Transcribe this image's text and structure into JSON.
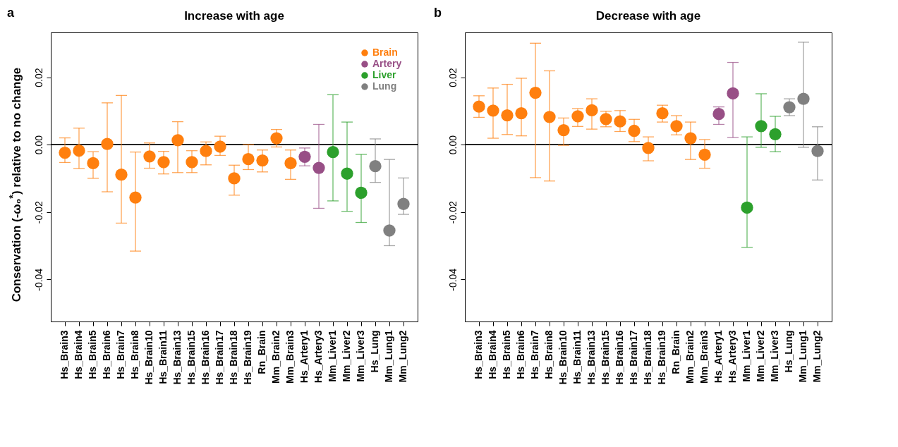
{
  "chart_data": [
    {
      "type": "scatter",
      "title": "Increase with age",
      "ylabel": "Conservation (-ω₀$^{*}$) relative to no change",
      "annotations": [
        "a"
      ],
      "categories": [
        "Hs_Brain3",
        "Hs_Brain4",
        "Hs_Brain5",
        "Hs_Brain6",
        "Hs_Brain7",
        "Hs_Brain8",
        "Hs_Brain10",
        "Hs_Brain11",
        "Hs_Brain13",
        "Hs_Brain15",
        "Hs_Brain16",
        "Hs_Brain17",
        "Hs_Brain18",
        "Hs_Brain19",
        "Rn_Brain",
        "Mm_Brain2",
        "Mm_Brain3",
        "Hs_Artery1",
        "Hs_Artery3",
        "Mm_Liver1",
        "Mm_Liver2",
        "Mm_Liver3",
        "Hs_Lung",
        "Mm_Lung1",
        "Mm_Lung2"
      ],
      "series": [
        {
          "name": "Brain",
          "color": "#ff7f0e",
          "x": [
            "Hs_Brain3",
            "Hs_Brain4",
            "Hs_Brain5",
            "Hs_Brain6",
            "Hs_Brain7",
            "Hs_Brain8",
            "Hs_Brain10",
            "Hs_Brain11",
            "Hs_Brain13",
            "Hs_Brain15",
            "Hs_Brain16",
            "Hs_Brain17",
            "Hs_Brain18",
            "Hs_Brain19",
            "Rn_Brain",
            "Mm_Brain2",
            "Mm_Brain3"
          ],
          "values": [
            -0.0024,
            -0.0018,
            -0.0055,
            0.0002,
            -0.0089,
            -0.0157,
            -0.0035,
            -0.0052,
            0.0013,
            -0.0052,
            -0.0019,
            -0.0006,
            -0.01,
            -0.0043,
            -0.0047,
            0.0019,
            -0.0055
          ],
          "errors": [
            [
              -0.0053,
              0.002
            ],
            [
              -0.0071,
              0.0049
            ],
            [
              -0.01,
              -0.0021
            ],
            [
              -0.014,
              0.0124
            ],
            [
              -0.0233,
              0.0146
            ],
            [
              -0.0316,
              -0.0022
            ],
            [
              -0.007,
              0.0005
            ],
            [
              -0.0087,
              -0.002
            ],
            [
              -0.0083,
              0.0068
            ],
            [
              -0.0083,
              -0.0018
            ],
            [
              -0.006,
              0.0008
            ],
            [
              -0.0032,
              0.0025
            ],
            [
              -0.015,
              -0.0061
            ],
            [
              -0.0074,
              0.0
            ],
            [
              -0.0081,
              -0.0016
            ],
            [
              -0.0007,
              0.0045
            ],
            [
              -0.0103,
              -0.0016
            ]
          ]
        },
        {
          "name": "Artery",
          "color": "#984f86",
          "x": [
            "Hs_Artery1",
            "Hs_Artery3"
          ],
          "values": [
            -0.0036,
            -0.0069
          ],
          "errors": [
            [
              -0.0063,
              -0.001
            ],
            [
              -0.0189,
              0.006
            ]
          ]
        },
        {
          "name": "Liver",
          "color": "#2ca02c",
          "x": [
            "Mm_Liver1",
            "Mm_Liver2",
            "Mm_Liver3"
          ],
          "values": [
            -0.0022,
            -0.0086,
            -0.0143
          ],
          "errors": [
            [
              -0.0167,
              0.0148
            ],
            [
              -0.0198,
              0.0067
            ],
            [
              -0.0231,
              -0.0029
            ]
          ]
        },
        {
          "name": "Lung",
          "color": "#808080",
          "x": [
            "Hs_Lung",
            "Mm_Lung1",
            "Mm_Lung2"
          ],
          "values": [
            -0.0064,
            -0.0255,
            -0.0176
          ],
          "errors": [
            [
              -0.0112,
              0.0017
            ],
            [
              -0.03,
              -0.0044
            ],
            [
              -0.0207,
              -0.0099
            ]
          ]
        }
      ],
      "ylim": [
        -0.0525,
        0.0333
      ],
      "yticks": [
        -0.04,
        -0.02,
        {
          "value": 0,
          "label": "0.00"
        },
        0.02
      ],
      "ref_lines": [
        {
          "axis": "y",
          "value": 0,
          "color": "#000000"
        }
      ],
      "marker": "circle",
      "grid": false,
      "legend": "top right"
    },
    {
      "type": "scatter",
      "title": "Decrease with age",
      "annotations": [
        "b"
      ],
      "categories": [
        "Hs_Brain3",
        "Hs_Brain4",
        "Hs_Brain5",
        "Hs_Brain6",
        "Hs_Brain7",
        "Hs_Brain8",
        "Hs_Brain10",
        "Hs_Brain11",
        "Hs_Brain13",
        "Hs_Brain15",
        "Hs_Brain16",
        "Hs_Brain17",
        "Hs_Brain18",
        "Hs_Brain19",
        "Rn_Brain",
        "Mm_Brain2",
        "Mm_Brain3",
        "Hs_Artery1",
        "Hs_Artery3",
        "Mm_Liver1",
        "Mm_Liver2",
        "Mm_Liver3",
        "Hs_Lung",
        "Mm_Lung1",
        "Mm_Lung2"
      ],
      "series": [
        {
          "color": "#ff7f0e",
          "x": [
            "Hs_Brain3",
            "Hs_Brain4",
            "Hs_Brain5",
            "Hs_Brain6",
            "Hs_Brain7",
            "Hs_Brain8",
            "Hs_Brain10",
            "Hs_Brain11",
            "Hs_Brain13",
            "Hs_Brain15",
            "Hs_Brain16",
            "Hs_Brain17",
            "Hs_Brain18",
            "Hs_Brain19",
            "Rn_Brain",
            "Mm_Brain2",
            "Mm_Brain3"
          ],
          "values": [
            0.0113,
            0.0101,
            0.0087,
            0.0093,
            0.0154,
            0.0082,
            0.0043,
            0.0084,
            0.0102,
            0.0076,
            0.0069,
            0.0041,
            -0.001,
            0.0093,
            0.0055,
            0.0019,
            -0.003
          ],
          "errors": [
            [
              0.0081,
              0.0145
            ],
            [
              0.0019,
              0.0168
            ],
            [
              0.003,
              0.0179
            ],
            [
              0.0026,
              0.0197
            ],
            [
              -0.0098,
              0.0301
            ],
            [
              -0.0108,
              0.0219
            ],
            [
              -0.0002,
              0.0079
            ],
            [
              0.0054,
              0.0107
            ],
            [
              0.0046,
              0.0136
            ],
            [
              0.0053,
              0.0099
            ],
            [
              0.0039,
              0.0101
            ],
            [
              0.0009,
              0.0075
            ],
            [
              -0.0048,
              0.0023
            ],
            [
              0.0067,
              0.0117
            ],
            [
              0.0029,
              0.0086
            ],
            [
              -0.0044,
              0.0067
            ],
            [
              -0.007,
              0.0015
            ]
          ]
        },
        {
          "color": "#984f86",
          "x": [
            "Hs_Artery1",
            "Hs_Artery3"
          ],
          "values": [
            0.0091,
            0.0152
          ],
          "errors": [
            [
              0.006,
              0.0112
            ],
            [
              0.0021,
              0.0244
            ]
          ]
        },
        {
          "color": "#2ca02c",
          "x": [
            "Mm_Liver1",
            "Mm_Liver2",
            "Mm_Liver3"
          ],
          "values": [
            -0.0187,
            0.0055,
            0.0031
          ],
          "errors": [
            [
              -0.0305,
              0.0023
            ],
            [
              -0.0008,
              0.0151
            ],
            [
              -0.0021,
              0.0084
            ]
          ]
        },
        {
          "color": "#808080",
          "x": [
            "Hs_Lung",
            "Mm_Lung1",
            "Mm_Lung2"
          ],
          "values": [
            0.0111,
            0.0136,
            -0.0019
          ],
          "errors": [
            [
              0.0086,
              0.0136
            ],
            [
              -0.0008,
              0.0304
            ],
            [
              -0.0105,
              0.0053
            ]
          ]
        }
      ],
      "ylim": [
        -0.0525,
        0.0333
      ],
      "yticks": [
        -0.04,
        -0.02,
        {
          "value": 0,
          "label": "0.00"
        },
        0.02
      ],
      "ref_lines": [
        {
          "axis": "y",
          "value": 0,
          "color": "#000000"
        }
      ],
      "marker": "circle",
      "grid": false
    }
  ]
}
